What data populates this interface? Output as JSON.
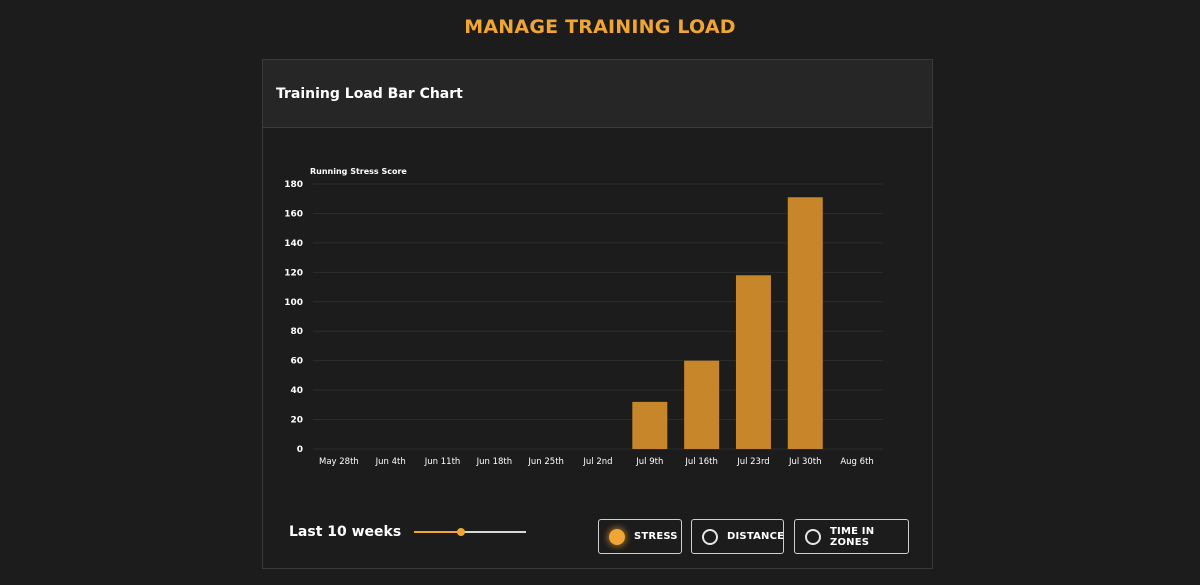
{
  "page": {
    "title": "MANAGE TRAINING LOAD"
  },
  "card": {
    "title": "Training Load Bar Chart"
  },
  "colors": {
    "accent": "#f0a535",
    "bar": "#c7862a",
    "background": "#1c1c1c",
    "header": "#262626"
  },
  "chart_data": {
    "type": "bar",
    "ylabel": "Running Stress Score",
    "xlabel": "",
    "categories": [
      "May 28th",
      "Jun 4th",
      "Jun 11th",
      "Jun 18th",
      "Jun 25th",
      "Jul 2nd",
      "Jul 9th",
      "Jul 16th",
      "Jul 23rd",
      "Jul 30th",
      "Aug 6th"
    ],
    "values": [
      0,
      0,
      0,
      0,
      0,
      0,
      32,
      60,
      118,
      171,
      0
    ],
    "ylim": [
      0,
      180
    ],
    "yticks": [
      "0",
      "20",
      "40",
      "60",
      "80",
      "100",
      "120",
      "140",
      "160",
      "180"
    ],
    "grid": true,
    "legend": "none"
  },
  "controls": {
    "range_label": "Last 10 weeks",
    "range_value": 0.42,
    "metrics": [
      {
        "label": "STRESS",
        "selected": true
      },
      {
        "label": "DISTANCE",
        "selected": false
      },
      {
        "label": "TIME IN ZONES",
        "selected": false
      }
    ]
  }
}
